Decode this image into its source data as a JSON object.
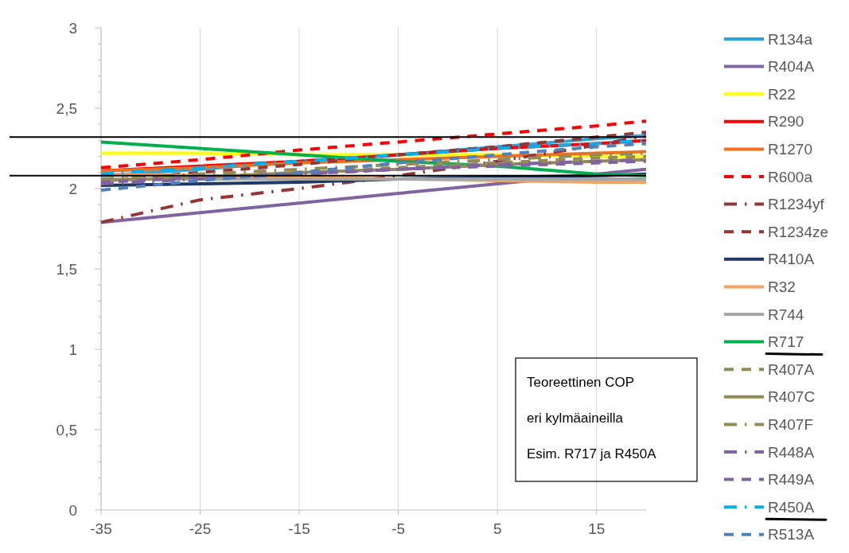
{
  "chart_data": {
    "type": "line",
    "x": [
      -35,
      -25,
      -15,
      -5,
      5,
      15,
      20
    ],
    "xlim": [
      -35,
      20
    ],
    "xticks": [
      -35,
      -25,
      -15,
      -5,
      5,
      15
    ],
    "ylim": [
      0,
      3
    ],
    "yticks": [
      {
        "value": 0,
        "label": "0"
      },
      {
        "value": 0.1,
        "label": null
      },
      {
        "value": 0.2,
        "label": null
      },
      {
        "value": 0.3,
        "label": null
      },
      {
        "value": 0.4,
        "label": null
      },
      {
        "value": 0.5,
        "label": "0,5"
      },
      {
        "value": 0.6,
        "label": null
      },
      {
        "value": 0.7,
        "label": null
      },
      {
        "value": 0.8,
        "label": null
      },
      {
        "value": 0.9,
        "label": null
      },
      {
        "value": 1,
        "label": "1"
      },
      {
        "value": 1.1,
        "label": null
      },
      {
        "value": 1.2,
        "label": null
      },
      {
        "value": 1.3,
        "label": null
      },
      {
        "value": 1.4,
        "label": null
      },
      {
        "value": 1.5,
        "label": "1,5"
      },
      {
        "value": 1.6,
        "label": null
      },
      {
        "value": 1.7,
        "label": null
      },
      {
        "value": 1.8,
        "label": null
      },
      {
        "value": 1.9,
        "label": null
      },
      {
        "value": 2,
        "label": "2"
      },
      {
        "value": 2.1,
        "label": null
      },
      {
        "value": 2.2,
        "label": null
      },
      {
        "value": 2.3,
        "label": null
      },
      {
        "value": 2.4,
        "label": null
      },
      {
        "value": 2.5,
        "label": "2,5"
      },
      {
        "value": 2.6,
        "label": null
      },
      {
        "value": 2.7,
        "label": null
      },
      {
        "value": 2.8,
        "label": null
      },
      {
        "value": 2.9,
        "label": null
      },
      {
        "value": 3,
        "label": "3"
      }
    ],
    "grid": "x",
    "legend": "right",
    "marker": "none",
    "series": [
      {
        "name": "R134a",
        "color": "#29a8e0",
        "line_style": "solid",
        "values": [
          2.08,
          2.12,
          2.17,
          2.21,
          2.26,
          2.31,
          2.33
        ]
      },
      {
        "name": "R404A",
        "color": "#8064a2",
        "line_style": "solid",
        "values": [
          1.79,
          1.85,
          1.91,
          1.97,
          2.03,
          2.09,
          2.12
        ]
      },
      {
        "name": "R22",
        "color": "#ffff00",
        "line_style": "solid",
        "values": [
          2.22,
          2.22,
          2.21,
          2.21,
          2.21,
          2.2,
          2.2
        ]
      },
      {
        "name": "R290",
        "color": "#ff0000",
        "line_style": "solid",
        "values": [
          2.11,
          2.14,
          2.17,
          2.21,
          2.25,
          2.28,
          2.3
        ]
      },
      {
        "name": "R1270",
        "color": "#f07020",
        "line_style": "solid",
        "values": [
          2.11,
          2.13,
          2.16,
          2.18,
          2.2,
          2.22,
          2.23
        ]
      },
      {
        "name": "R600a",
        "color": "#ff0000",
        "line_style": "dashed",
        "values": [
          2.13,
          2.18,
          2.24,
          2.29,
          2.34,
          2.39,
          2.42
        ]
      },
      {
        "name": "R1234yf",
        "color": "#943634",
        "line_style": "dashdot",
        "values": [
          1.79,
          1.93,
          2.0,
          2.08,
          2.17,
          2.27,
          2.33
        ]
      },
      {
        "name": "R1234ze",
        "color": "#943634",
        "line_style": "dashed",
        "values": [
          2.05,
          2.1,
          2.15,
          2.21,
          2.26,
          2.32,
          2.35
        ]
      },
      {
        "name": "R410A",
        "color": "#1f3864",
        "line_style": "solid",
        "values": [
          2.02,
          2.03,
          2.04,
          2.06,
          2.07,
          2.08,
          2.09
        ]
      },
      {
        "name": "R32",
        "color": "#f4a460",
        "line_style": "solid",
        "values": [
          2.09,
          2.08,
          2.07,
          2.06,
          2.05,
          2.04,
          2.04
        ]
      },
      {
        "name": "R744",
        "color": "#a6a6a6",
        "line_style": "solid",
        "values": [
          2.06,
          2.06,
          2.06,
          2.06,
          2.06,
          2.06,
          2.06
        ]
      },
      {
        "name": "R717",
        "color": "#00b050",
        "line_style": "solid",
        "values": [
          2.29,
          2.25,
          2.21,
          2.17,
          2.14,
          2.09,
          2.08
        ]
      },
      {
        "name": "R407A",
        "color": "#948a54",
        "line_style": "dashed",
        "values": [
          2.04,
          2.07,
          2.1,
          2.13,
          2.16,
          2.19,
          2.2
        ]
      },
      {
        "name": "R407C",
        "color": "#948a54",
        "line_style": "solid",
        "values": [
          2.05,
          2.07,
          2.1,
          2.12,
          2.15,
          2.17,
          2.18
        ]
      },
      {
        "name": "R407F",
        "color": "#948a54",
        "line_style": "dashdot",
        "values": [
          2.06,
          2.09,
          2.12,
          2.15,
          2.18,
          2.21,
          2.22
        ]
      },
      {
        "name": "R448A",
        "color": "#8064a2",
        "line_style": "dashdot",
        "values": [
          2.03,
          2.06,
          2.09,
          2.12,
          2.15,
          2.17,
          2.18
        ]
      },
      {
        "name": "R449A",
        "color": "#8064a2",
        "line_style": "dashed",
        "values": [
          2.04,
          2.07,
          2.09,
          2.12,
          2.14,
          2.16,
          2.17
        ]
      },
      {
        "name": "R450A",
        "color": "#00b0f0",
        "line_style": "dashdot",
        "values": [
          2.09,
          2.13,
          2.17,
          2.21,
          2.25,
          2.28,
          2.3
        ]
      },
      {
        "name": "R513A",
        "color": "#4f81bd",
        "line_style": "dashed",
        "values": [
          1.99,
          2.05,
          2.1,
          2.16,
          2.21,
          2.26,
          2.28
        ]
      }
    ],
    "ref_lines": [
      {
        "axis": "y",
        "value": 2.32,
        "color": "#000000"
      },
      {
        "axis": "y",
        "value": 2.08,
        "color": "#000000"
      }
    ],
    "annotations": [
      "Teoreettinen COP",
      "eri kylmäaineilla",
      "Esim. R717 ja R450A"
    ]
  }
}
